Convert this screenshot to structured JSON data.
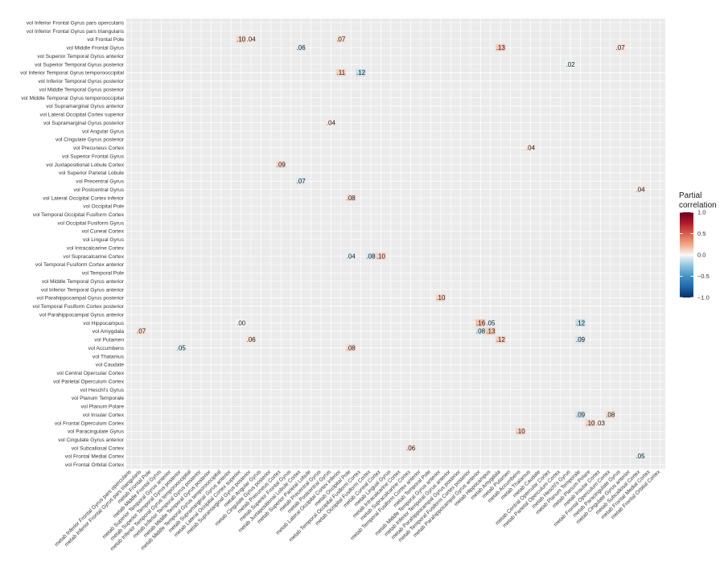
{
  "chart_data": {
    "type": "heatmap",
    "title": "",
    "xlabel": "",
    "ylabel": "",
    "y_categories": [
      "vol Inferior Frontal Gyrus pars opercularis",
      "vol Inferior Frontal Gyrus pars triangularis",
      "vol Frontal Pole",
      "vol Middle Frontal Gyrus",
      "vol Superior Temporal Gyrus anterior",
      "vol Superior Temporal Gyrus posterior",
      "vol Inferior Temporal Gyrus temporooccipital",
      "vol Inferior Temporal Gyrus posterior",
      "vol Middle Temporal Gyrus posterior",
      "vol Middle Temporal Gyrus temporooccipital",
      "vol Supramarginal Gyrus anterior",
      "vol Lateral Occipital Cortex superior",
      "vol Supramarginal Gyrus posterior",
      "vol Angular Gyrus",
      "vol Cingulate Gyrus posterior",
      "vol Precuneus Cortex",
      "vol Superior Frontal Gyrus",
      "vol Juxtapositional Lobule Cortex",
      "vol Superior Parietal Lobule",
      "vol Precentral Gyrus",
      "vol Postcentral Gyrus",
      "vol Lateral Occipital Cortex inferior",
      "vol Occipital Pole",
      "vol Temporal Occipital Fusiform Cortex",
      "vol Occipital Fusiform Gyrus",
      "vol Cuneal Cortex",
      "vol Lingual Gyrus",
      "vol Intracalcarine Cortex",
      "vol Supracalcarine Cortex",
      "vol Temporal Fusiform Cortex anterior",
      "vol Temporal Pole",
      "vol Middle Temporal Gyrus anterior",
      "vol Inferior Temporal Gyrus anterior",
      "vol Parahippocampal Gyrus posterior",
      "vol Temporal Fusiform Cortex posterior",
      "vol Parahippocampal Gyrus anterior",
      "vol Hippocampus",
      "vol Amygdala",
      "vol Putamen",
      "vol Accumbens",
      "vol Thalamus",
      "vol Caudate",
      "vol Central Opercular Cortex",
      "vol Parietal Operculum Cortex",
      "vol Heschl's Gyrus",
      "vol Planum Temporale",
      "vol Planum Polare",
      "vol Insular Cortex",
      "vol Frontal Operculum Cortex",
      "vol Paracingulate Gyrus",
      "vol Cingulate Gyrus anterior",
      "vol Subcallosal Cortex",
      "vol Frontal Medial Cortex",
      "vol Frontal Orbital Cortex"
    ],
    "x_categories": [
      "metab Inferior Frontal Gyrus pars opercularis",
      "metab Inferior Frontal Gyrus pars triangularis",
      "metab Frontal Pole",
      "metab Middle Frontal Gyrus",
      "metab Superior Temporal Gyrus anterior",
      "metab Superior Temporal Gyrus posterior",
      "metab Inferior Temporal Gyrus temporooccipital",
      "metab Inferior Temporal Gyrus posterior",
      "metab Middle Temporal Gyrus posterior",
      "metab Middle Temporal Gyrus temporooccipital",
      "metab Supramarginal Gyrus anterior",
      "metab Lateral Occipital Cortex superior",
      "metab Supramarginal Gyrus posterior",
      "metab Angular Gyrus",
      "metab Cingulate Gyrus posterior",
      "metab Precuneus Cortex",
      "metab Superior Frontal Gyrus",
      "metab Juxtapositional Lobule Cortex",
      "metab Superior Parietal Lobule",
      "metab Precentral Gyrus",
      "metab Postcentral Gyrus",
      "metab Lateral Occipital Cortex inferior",
      "metab Occipital Pole",
      "metab Temporal Occipital Fusiform Cortex",
      "metab Occipital Fusiform Cortex",
      "metab Cuneal Cortex",
      "metab Lingual Gyrus",
      "metab Intracalcarine Cortex",
      "metab Supracalcarine Cortex",
      "metab Temporal Fusiform Cortex anterior",
      "metab Temporal Pole",
      "metab Middle Temporal Gyrus anterior",
      "metab Inferior Temporal Gyrus anterior",
      "metab Parahippocampal Gyrus posterior",
      "metab Temporal Fusiform Cortex posterior",
      "metab Parahippocampal Gyrus anterior",
      "metab Hippocampus",
      "metab Amygdala",
      "metab Putamen",
      "metab Accumbens",
      "metab Thalamus",
      "metab Caudate",
      "metab Central Opercular Cortex",
      "metab Parietal Operculum Cortex",
      "metab Heschl's Gyrus",
      "metab Planum Temporale",
      "metab Planum Polare",
      "metab Insular Cortex",
      "metab Frontal Operculum Cortex",
      "metab Paracingulate Gyrus",
      "metab Cingulate Gyrus anterior",
      "metab Subcallosal Cortex",
      "metab Frontal Medial Cortex",
      "metab Frontal Orbital Cortex"
    ],
    "cells": [
      {
        "row": 2,
        "col": 11,
        "value": 0.1,
        "label": ".10"
      },
      {
        "row": 2,
        "col": 12,
        "value": 0.04,
        "label": ".04"
      },
      {
        "row": 2,
        "col": 21,
        "value": 0.07,
        "label": ".07"
      },
      {
        "row": 3,
        "col": 17,
        "value": -0.06,
        "label": ".06"
      },
      {
        "row": 3,
        "col": 37,
        "value": 0.13,
        "label": ".13"
      },
      {
        "row": 3,
        "col": 49,
        "value": 0.07,
        "label": ".07"
      },
      {
        "row": 5,
        "col": 44,
        "value": -0.02,
        "label": ".02"
      },
      {
        "row": 6,
        "col": 21,
        "value": 0.11,
        "label": ".11"
      },
      {
        "row": 6,
        "col": 23,
        "value": -0.12,
        "label": ".12"
      },
      {
        "row": 12,
        "col": 20,
        "value": 0.04,
        "label": ".04"
      },
      {
        "row": 15,
        "col": 40,
        "value": 0.04,
        "label": ".04"
      },
      {
        "row": 17,
        "col": 15,
        "value": 0.09,
        "label": ".09"
      },
      {
        "row": 19,
        "col": 17,
        "value": -0.07,
        "label": ".07"
      },
      {
        "row": 20,
        "col": 51,
        "value": 0.04,
        "label": ".04"
      },
      {
        "row": 21,
        "col": 22,
        "value": 0.08,
        "label": ".08"
      },
      {
        "row": 28,
        "col": 22,
        "value": -0.04,
        "label": ".04"
      },
      {
        "row": 28,
        "col": 24,
        "value": -0.08,
        "label": ".08"
      },
      {
        "row": 28,
        "col": 25,
        "value": 0.1,
        "label": ".10"
      },
      {
        "row": 33,
        "col": 31,
        "value": 0.1,
        "label": ".10"
      },
      {
        "row": 36,
        "col": 11,
        "value": 0.0,
        "label": ".00"
      },
      {
        "row": 36,
        "col": 35,
        "value": 0.16,
        "label": ".16"
      },
      {
        "row": 36,
        "col": 36,
        "value": -0.05,
        "label": ".05"
      },
      {
        "row": 36,
        "col": 45,
        "value": -0.12,
        "label": ".12"
      },
      {
        "row": 37,
        "col": 1,
        "value": 0.07,
        "label": ".07"
      },
      {
        "row": 37,
        "col": 35,
        "value": -0.08,
        "label": ".08"
      },
      {
        "row": 37,
        "col": 36,
        "value": 0.13,
        "label": ".13"
      },
      {
        "row": 38,
        "col": 12,
        "value": 0.06,
        "label": ".06"
      },
      {
        "row": 38,
        "col": 37,
        "value": 0.12,
        "label": ".12"
      },
      {
        "row": 38,
        "col": 45,
        "value": -0.09,
        "label": ".09"
      },
      {
        "row": 39,
        "col": 5,
        "value": -0.05,
        "label": ".05"
      },
      {
        "row": 39,
        "col": 22,
        "value": 0.08,
        "label": ".08"
      },
      {
        "row": 47,
        "col": 45,
        "value": -0.09,
        "label": ".09"
      },
      {
        "row": 47,
        "col": 48,
        "value": 0.08,
        "label": ".08"
      },
      {
        "row": 48,
        "col": 46,
        "value": 0.1,
        "label": ".10"
      },
      {
        "row": 48,
        "col": 47,
        "value": 0.03,
        "label": ".03"
      },
      {
        "row": 49,
        "col": 39,
        "value": 0.1,
        "label": ".10"
      },
      {
        "row": 51,
        "col": 28,
        "value": 0.06,
        "label": ".06"
      },
      {
        "row": 52,
        "col": 51,
        "value": -0.05,
        "label": ".05"
      }
    ],
    "color_scale": {
      "title_lines": [
        "Partial",
        "correlation"
      ],
      "min": -1.0,
      "max": 1.0,
      "ticks": [
        1.0,
        0.5,
        0.0,
        -0.5,
        -1.0
      ],
      "tick_labels": [
        "1.0",
        "0.5",
        "0.0",
        "−0.5",
        "−1.0"
      ],
      "low_color": "#053061",
      "mid_color": "#f7f7f7",
      "high_color": "#67001f"
    },
    "grid": true,
    "legend_position": "right"
  }
}
